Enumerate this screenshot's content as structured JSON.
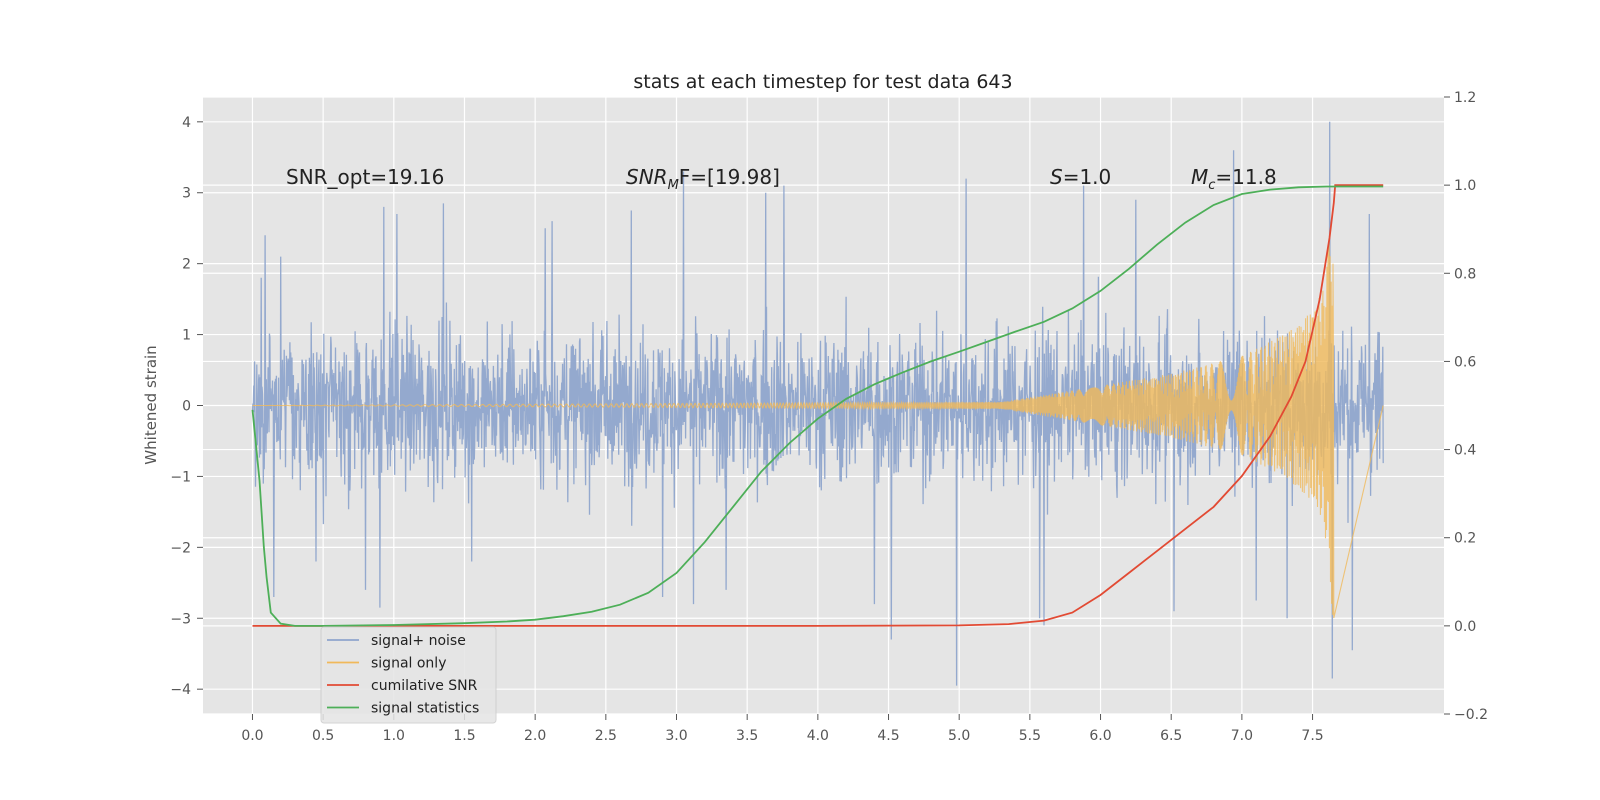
{
  "chart_data": {
    "type": "line",
    "title": "stats at each timestep for test data 643",
    "ylabel": "Whitened strain",
    "xlabel": "",
    "xlim": [
      -0.35,
      8.43
    ],
    "ylim_left": [
      -4.35,
      4.35
    ],
    "ylim_right": [
      -0.2,
      1.2
    ],
    "grid": true,
    "x_ticks": [
      "0.0",
      "0.5",
      "1.0",
      "1.5",
      "2.0",
      "2.5",
      "3.0",
      "3.5",
      "4.0",
      "4.5",
      "5.0",
      "5.5",
      "6.0",
      "6.5",
      "7.0",
      "7.5"
    ],
    "x_tick_values": [
      0,
      0.5,
      1,
      1.5,
      2,
      2.5,
      3,
      3.5,
      4,
      4.5,
      5,
      5.5,
      6,
      6.5,
      7,
      7.5
    ],
    "y_ticks_left": [
      "4",
      "3",
      "2",
      "1",
      "0",
      "−1",
      "−2",
      "−3",
      "−4"
    ],
    "y_tick_values_left": [
      4,
      3,
      2,
      1,
      0,
      -1,
      -2,
      -3,
      -4
    ],
    "y_ticks_right": [
      "1.2",
      "1.0",
      "0.8",
      "0.6",
      "0.4",
      "0.2",
      "0.0",
      "−0.2"
    ],
    "y_tick_values_right": [
      1.2,
      1.0,
      0.8,
      0.6,
      0.4,
      0.2,
      0.0,
      -0.2
    ],
    "annotations": {
      "snr_opt": "SNR_opt=19.16",
      "snr_mf_main": "SNR",
      "snr_mf_sub": "M",
      "snr_mf_rest": "F=[19.98]",
      "s_main": "S",
      "s_rest": "=1.0",
      "mc_main": "M",
      "mc_sub": "c",
      "mc_rest": "=11.8"
    },
    "legend": {
      "placement": "lower-left",
      "entries": [
        {
          "label": "signal+ noise",
          "color": "#8fa5cc"
        },
        {
          "label": "signal only",
          "color": "#f0b95a"
        },
        {
          "label": "cumilative SNR",
          "color": "#e24a33"
        },
        {
          "label": "signal statistics",
          "color": "#4daf58"
        }
      ]
    },
    "series": [
      {
        "name": "signal+ noise",
        "axis": "left",
        "color": "#8fa5cc",
        "x_range": [
          0,
          8.0
        ],
        "envelope_typical": [
          -1.8,
          2.0
        ],
        "spikes": [
          [
            0.06,
            1.8
          ],
          [
            0.09,
            2.4
          ],
          [
            0.15,
            -2.7
          ],
          [
            0.2,
            2.1
          ],
          [
            0.45,
            -2.2
          ],
          [
            0.8,
            -2.6
          ],
          [
            0.9,
            -2.85
          ],
          [
            0.93,
            2.8
          ],
          [
            1.02,
            2.7
          ],
          [
            1.35,
            2.85
          ],
          [
            1.55,
            -2.2
          ],
          [
            2.07,
            2.5
          ],
          [
            2.12,
            2.6
          ],
          [
            2.68,
            2.75
          ],
          [
            2.9,
            -2.7
          ],
          [
            3.05,
            3.3
          ],
          [
            3.12,
            -2.8
          ],
          [
            3.35,
            -2.6
          ],
          [
            3.63,
            3.0
          ],
          [
            3.76,
            3.1
          ],
          [
            4.4,
            -2.8
          ],
          [
            4.52,
            -3.3
          ],
          [
            4.98,
            -3.95
          ],
          [
            5.05,
            3.2
          ],
          [
            5.57,
            -3.0
          ],
          [
            5.6,
            -3.1
          ],
          [
            5.88,
            3.1
          ],
          [
            6.25,
            2.9
          ],
          [
            6.52,
            -2.9
          ],
          [
            6.94,
            3.6
          ],
          [
            7.1,
            -2.75
          ],
          [
            7.32,
            -3.0
          ],
          [
            7.62,
            4.0
          ],
          [
            7.64,
            -3.85
          ],
          [
            7.78,
            -3.45
          ],
          [
            7.9,
            2.7
          ]
        ]
      },
      {
        "name": "signal only",
        "axis": "left",
        "color": "#f0b95a",
        "x_range": [
          0,
          7.65
        ],
        "amplitude_points": [
          [
            0,
            0.0
          ],
          [
            5.3,
            0.05
          ],
          [
            6.0,
            0.28
          ],
          [
            6.5,
            0.45
          ],
          [
            7.0,
            0.7
          ],
          [
            7.3,
            1.0
          ],
          [
            7.5,
            1.35
          ],
          [
            7.58,
            1.65
          ],
          [
            7.63,
            2.7
          ],
          [
            7.65,
            3.15
          ]
        ],
        "tail_to": 8.0
      },
      {
        "name": "cumilative SNR",
        "axis": "right",
        "color": "#e24a33",
        "x": [
          0,
          1,
          2,
          3,
          4,
          5,
          5.35,
          5.6,
          5.8,
          6.0,
          6.2,
          6.4,
          6.6,
          6.8,
          7.0,
          7.2,
          7.35,
          7.45,
          7.55,
          7.62,
          7.65,
          7.66,
          8.0
        ],
        "y": [
          0,
          0,
          0,
          0,
          0,
          0.001,
          0.004,
          0.012,
          0.03,
          0.07,
          0.12,
          0.17,
          0.22,
          0.27,
          0.34,
          0.43,
          0.52,
          0.6,
          0.74,
          0.88,
          0.96,
          1.0,
          1.0
        ]
      },
      {
        "name": "signal statistics",
        "axis": "right",
        "color": "#4daf58",
        "x": [
          0,
          0.05,
          0.08,
          0.1,
          0.13,
          0.2,
          0.3,
          0.5,
          1.0,
          1.5,
          1.8,
          2.0,
          2.2,
          2.4,
          2.6,
          2.8,
          3.0,
          3.2,
          3.4,
          3.6,
          3.8,
          4.0,
          4.2,
          4.4,
          4.6,
          4.8,
          5.0,
          5.2,
          5.4,
          5.6,
          5.8,
          6.0,
          6.2,
          6.4,
          6.6,
          6.8,
          7.0,
          7.2,
          7.4,
          7.6,
          8.0
        ],
        "y": [
          0.49,
          0.33,
          0.18,
          0.11,
          0.03,
          0.005,
          0.0,
          0.0,
          0.002,
          0.006,
          0.01,
          0.014,
          0.022,
          0.032,
          0.048,
          0.075,
          0.12,
          0.19,
          0.27,
          0.35,
          0.415,
          0.47,
          0.515,
          0.548,
          0.575,
          0.6,
          0.622,
          0.645,
          0.668,
          0.69,
          0.72,
          0.76,
          0.81,
          0.865,
          0.915,
          0.955,
          0.98,
          0.99,
          0.995,
          0.997,
          0.997
        ]
      }
    ]
  }
}
